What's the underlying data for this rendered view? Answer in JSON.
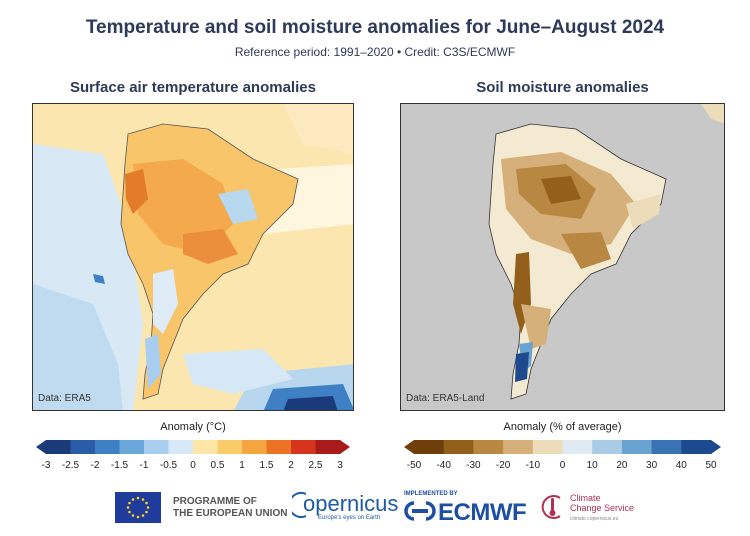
{
  "header": {
    "title": "Temperature and soil moisture anomalies for June–August 2024",
    "subtitle": "Reference period: 1991–2020 • Credit: C3S/ECMWF"
  },
  "panels": [
    {
      "title": "Surface air temperature anomalies",
      "data_source": "Data: ERA5",
      "colorbar_label": "Anomaly (°C)",
      "ticks": [
        "-3",
        "-2.5",
        "-2",
        "-1.5",
        "-1",
        "-0.5",
        "0",
        "0.5",
        "1",
        "1.5",
        "2",
        "2.5",
        "3"
      ],
      "colors": [
        "#1b3a7a",
        "#2b5ca8",
        "#3f80c4",
        "#6aa8dc",
        "#a9cdee",
        "#d7e9f7",
        "#fffbe9",
        "#fde6a8",
        "#f9cc6a",
        "#f5a53f",
        "#ec7226",
        "#d5351c",
        "#a91b1b"
      ]
    },
    {
      "title": "Soil moisture anomalies",
      "data_source": "Data: ERA5-Land",
      "colorbar_label": "Anomaly (% of average)",
      "ticks": [
        "-50",
        "-40",
        "-30",
        "-20",
        "-10",
        "0",
        "10",
        "20",
        "30",
        "40",
        "50"
      ],
      "colors": [
        "#6e3f0a",
        "#93601c",
        "#b88742",
        "#d6b07a",
        "#ecdcb9",
        "#f7f1e4",
        "#dfeaf3",
        "#a9cbe5",
        "#6aa3d2",
        "#3a73b4",
        "#1d4a8f"
      ]
    }
  ],
  "logos": {
    "eu_text_line1": "PROGRAMME OF",
    "eu_text_line2": "THE EUROPEAN UNION",
    "copernicus": "opernicus",
    "copernicus_tag": "Europe's eyes on Earth",
    "implemented_by": "IMPLEMENTED BY",
    "ecmwf": "ECMWF",
    "c3s_line1": "Climate",
    "c3s_line2": "Change Service",
    "c3s_url": "climate.copernicus.eu"
  }
}
